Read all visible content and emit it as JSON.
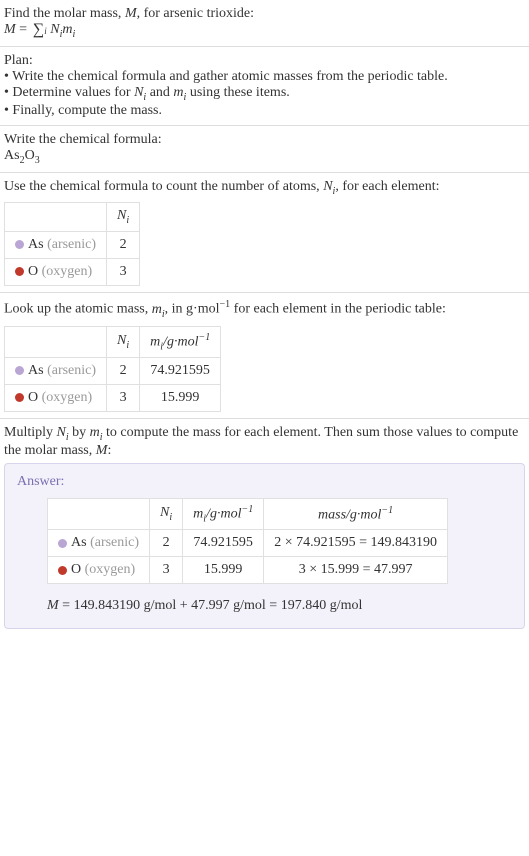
{
  "intro": {
    "line1_a": "Find the molar mass, ",
    "line1_b": ", for arsenic trioxide:",
    "M": "M",
    "eq": " = ",
    "sum_index": "i",
    "Ni": "N",
    "mi": "m",
    "i": "i"
  },
  "plan": {
    "heading": "Plan:",
    "b1": "• Write the chemical formula and gather atomic masses from the periodic table.",
    "b2_a": "• Determine values for ",
    "b2_b": " and ",
    "b2_c": " using these items.",
    "b3": "• Finally, compute the mass."
  },
  "chemFormula": {
    "heading": "Write the chemical formula:",
    "As": "As",
    "two": "2",
    "O": "O",
    "three": "3"
  },
  "countAtoms": {
    "heading_a": "Use the chemical formula to count the number of atoms, ",
    "heading_b": ", for each element:",
    "colN": "N",
    "rows": [
      {
        "dot": "#b9a6d4",
        "sym": "As",
        "name": "(arsenic)",
        "n": "2"
      },
      {
        "dot": "#c0392b",
        "sym": "O",
        "name": "(oxygen)",
        "n": "3"
      }
    ]
  },
  "atomicMass": {
    "heading_a": "Look up the atomic mass, ",
    "heading_b": ", in g·mol",
    "heading_c": " for each element in the periodic table:",
    "neg1": "−1",
    "colN": "N",
    "colM_a": "m",
    "colM_b": "/g·mol",
    "rows": [
      {
        "dot": "#b9a6d4",
        "sym": "As",
        "name": "(arsenic)",
        "n": "2",
        "m": "74.921595"
      },
      {
        "dot": "#c0392b",
        "sym": "O",
        "name": "(oxygen)",
        "n": "3",
        "m": "15.999"
      }
    ]
  },
  "multiply": {
    "text_a": "Multiply ",
    "text_b": " by ",
    "text_c": " to compute the mass for each element. Then sum those values to compute the molar mass, ",
    "text_d": ":"
  },
  "answer": {
    "label": "Answer:",
    "colN": "N",
    "colM_a": "m",
    "colM_b": "/g·mol",
    "colMass_a": "mass/g·mol",
    "neg1": "−1",
    "rows": [
      {
        "dot": "#b9a6d4",
        "sym": "As",
        "name": "(arsenic)",
        "n": "2",
        "m": "74.921595",
        "mass": "2 × 74.921595 = 149.843190"
      },
      {
        "dot": "#c0392b",
        "sym": "O",
        "name": "(oxygen)",
        "n": "3",
        "m": "15.999",
        "mass": "3 × 15.999 = 47.997"
      }
    ],
    "final_a": "M",
    "final_b": " = 149.843190 g/mol + 47.997 g/mol = 197.840 g/mol"
  },
  "colors": {
    "answer_bg": "#f3f1fa",
    "answer_border": "#d8d4ec",
    "answer_text": "#7a6fb0"
  }
}
